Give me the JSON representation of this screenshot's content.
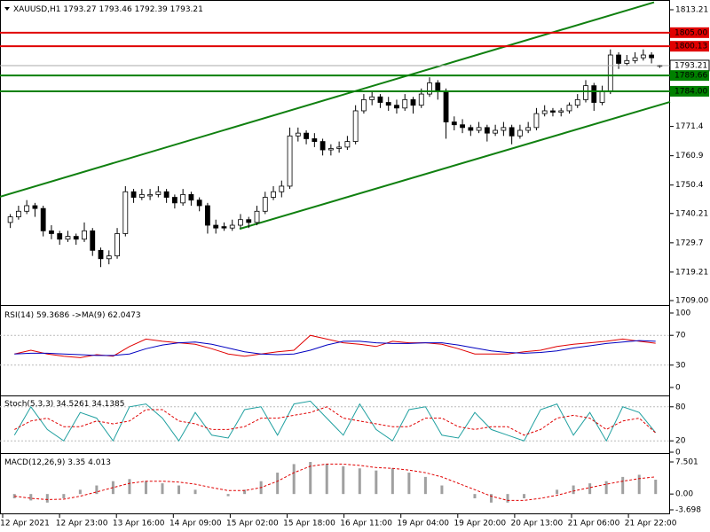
{
  "chart_data": {
    "type": "candlestick",
    "symbol": "XAUUSD,H1",
    "bull_color": "#ffffff",
    "bear_color": "#000000",
    "candles": [
      [
        1737,
        1740,
        1735,
        1739
      ],
      [
        1739,
        1743,
        1738,
        1741
      ],
      [
        1741,
        1745,
        1740,
        1743
      ],
      [
        1743,
        1744,
        1739,
        1742
      ],
      [
        1742,
        1743,
        1732,
        1734
      ],
      [
        1734,
        1736,
        1731,
        1733
      ],
      [
        1733,
        1734,
        1729,
        1731
      ],
      [
        1731,
        1734,
        1730,
        1732
      ],
      [
        1732,
        1733,
        1729,
        1731
      ],
      [
        1731,
        1737,
        1730,
        1734
      ],
      [
        1734,
        1735,
        1725,
        1727
      ],
      [
        1727,
        1728,
        1721,
        1724
      ],
      [
        1724,
        1727,
        1722,
        1725
      ],
      [
        1725,
        1735,
        1724,
        1733
      ],
      [
        1733,
        1750,
        1732,
        1748
      ],
      [
        1748,
        1749,
        1744,
        1746
      ],
      [
        1746,
        1749,
        1745,
        1747
      ],
      [
        1746.5,
        1749,
        1745,
        1747
      ],
      [
        1747,
        1750,
        1746,
        1748
      ],
      [
        1748,
        1749,
        1744,
        1746
      ],
      [
        1746,
        1747,
        1742,
        1744
      ],
      [
        1744,
        1749,
        1743,
        1747
      ],
      [
        1747,
        1748,
        1743,
        1745
      ],
      [
        1745,
        1746,
        1741,
        1743
      ],
      [
        1743,
        1744,
        1733,
        1736
      ],
      [
        1736,
        1738,
        1733,
        1735
      ],
      [
        1735.5,
        1737,
        1734,
        1735
      ],
      [
        1735,
        1738,
        1734,
        1736
      ],
      [
        1736,
        1740,
        1735,
        1738
      ],
      [
        1738,
        1739,
        1735,
        1737
      ],
      [
        1737,
        1743,
        1736,
        1741
      ],
      [
        1741,
        1748,
        1740,
        1746
      ],
      [
        1746,
        1750,
        1745,
        1748
      ],
      [
        1748,
        1752,
        1746,
        1750
      ],
      [
        1750,
        1771,
        1749,
        1768
      ],
      [
        1768,
        1771,
        1766,
        1769
      ],
      [
        1769,
        1770,
        1765,
        1767
      ],
      [
        1767,
        1769,
        1764,
        1766
      ],
      [
        1766,
        1767,
        1761,
        1763
      ],
      [
        1763,
        1765,
        1761,
        1763.5
      ],
      [
        1763.5,
        1766,
        1762,
        1764
      ],
      [
        1764,
        1768,
        1763,
        1766
      ],
      [
        1766,
        1779,
        1765,
        1777
      ],
      [
        1777,
        1783,
        1776,
        1781
      ],
      [
        1781,
        1784,
        1779,
        1782
      ],
      [
        1782,
        1783,
        1778,
        1780
      ],
      [
        1780,
        1782,
        1777,
        1779
      ],
      [
        1779,
        1781,
        1776,
        1778
      ],
      [
        1778,
        1783,
        1777,
        1781
      ],
      [
        1781,
        1782,
        1776,
        1779
      ],
      [
        1779,
        1785,
        1778,
        1783
      ],
      [
        1783,
        1789,
        1782,
        1787
      ],
      [
        1787,
        1788,
        1781,
        1784
      ],
      [
        1784,
        1785,
        1767,
        1773
      ],
      [
        1773,
        1775,
        1770,
        1772
      ],
      [
        1772,
        1774,
        1769,
        1771
      ],
      [
        1771,
        1772,
        1768,
        1770
      ],
      [
        1770,
        1773,
        1769,
        1771
      ],
      [
        1771,
        1772,
        1766,
        1769
      ],
      [
        1769,
        1772,
        1768,
        1770
      ],
      [
        1770,
        1773,
        1768,
        1771
      ],
      [
        1771,
        1772,
        1765,
        1768
      ],
      [
        1768,
        1772,
        1767,
        1770
      ],
      [
        1770,
        1773,
        1769,
        1771
      ],
      [
        1771,
        1778,
        1770,
        1776
      ],
      [
        1776,
        1779,
        1775,
        1777
      ],
      [
        1777,
        1778,
        1775,
        1776.5
      ],
      [
        1776.5,
        1778,
        1775,
        1777
      ],
      [
        1777,
        1780,
        1776,
        1779
      ],
      [
        1779,
        1783,
        1778,
        1781
      ],
      [
        1781,
        1788,
        1780,
        1786
      ],
      [
        1786,
        1787,
        1777,
        1780
      ],
      [
        1780,
        1786,
        1779,
        1784
      ],
      [
        1784,
        1799,
        1783,
        1797
      ],
      [
        1797,
        1798,
        1792,
        1794
      ],
      [
        1794,
        1797,
        1793,
        1795
      ],
      [
        1795,
        1798,
        1794,
        1796
      ],
      [
        1796,
        1799,
        1795,
        1797
      ],
      [
        1797,
        1798,
        1794,
        1796
      ],
      [
        1793.27,
        1793.46,
        1792.39,
        1793.21
      ]
    ],
    "ylim": [
      1709,
      1813.21
    ],
    "yticks": [
      1813.21,
      1771.4,
      1760.9,
      1750.4,
      1740.21,
      1729.7,
      1719.21,
      {
        "value": 1709,
        "label": "1709.00"
      }
    ],
    "levels": [
      {
        "value": 1805,
        "label": "1805.00",
        "color": "#e00000"
      },
      {
        "value": 1800.13,
        "label": "1800.13",
        "color": "#e00000"
      },
      {
        "value": 1789.66,
        "label": "1789.66",
        "color": "#008000"
      },
      {
        "value": 1784,
        "label": "1784.00",
        "color": "#008000"
      }
    ],
    "trendlines": [
      {
        "color": "#108010",
        "values": [
          1746.2,
          1815.9
        ]
      },
      {
        "color": "#108010",
        "values": [
          1734.7,
          1780.2
        ]
      }
    ],
    "x_labels": [
      "12 Apr 2021",
      "12 Apr 23:00",
      "13 Apr 16:00",
      "14 Apr 09:00",
      "15 Apr 02:00",
      "15 Apr 18:00",
      "16 Apr 11:00",
      "19 Apr 04:00",
      "19 Apr 20:00",
      "20 Apr 13:00",
      "21 Apr 06:00",
      "21 Apr 22:00"
    ],
    "indicators": [
      {
        "type": "line",
        "name": "RSI(14)",
        "ma_name": "->MA(9)",
        "ylim": [
          0,
          100
        ],
        "yticks": [
          100,
          70,
          30,
          0
        ],
        "levels": [
          70,
          30
        ],
        "series": [
          {
            "color": "#e00000",
            "values": [
              45,
              50,
              45,
              42,
              40,
              44,
              42,
              55,
              65,
              62,
              60,
              58,
              52,
              45,
              42,
              45,
              48,
              50,
              70,
              65,
              60,
              58,
              55,
              62,
              60,
              60,
              58,
              52,
              45,
              45,
              45,
              48,
              50,
              55,
              58,
              60,
              62,
              65,
              62,
              59.3686
            ]
          },
          {
            "color": "#0000c0",
            "values": [
              45,
              46,
              46,
              45,
              44,
              43,
              43,
              45,
              52,
              57,
              60,
              61,
              58,
              53,
              48,
              45,
              44,
              45,
              50,
              57,
              62,
              62,
              60,
              59,
              59,
              60,
              60,
              57,
              53,
              49,
              47,
              46,
              47,
              49,
              53,
              56,
              59,
              61,
              63,
              62.0473
            ]
          }
        ]
      },
      {
        "type": "line",
        "name": "Stoch(5,3,3)",
        "ylim": [
          0,
          100
        ],
        "yticks": [
          80,
          20,
          0
        ],
        "levels": [
          80,
          20
        ],
        "series": [
          {
            "color": "#20a0a0",
            "values": [
              30,
              80,
              40,
              20,
              70,
              60,
              20,
              80,
              85,
              60,
              20,
              70,
              30,
              25,
              75,
              80,
              30,
              85,
              90,
              60,
              30,
              85,
              40,
              20,
              75,
              80,
              30,
              25,
              70,
              40,
              30,
              20,
              75,
              85,
              30,
              70,
              20,
              80,
              70,
              34.5261
            ]
          },
          {
            "color": "#e00000",
            "dash": true,
            "values": [
              40,
              55,
              60,
              45,
              45,
              55,
              50,
              55,
              75,
              75,
              55,
              50,
              40,
              40,
              45,
              60,
              60,
              65,
              70,
              80,
              60,
              55,
              50,
              45,
              45,
              60,
              60,
              45,
              40,
              45,
              45,
              30,
              40,
              60,
              65,
              60,
              40,
              55,
              60,
              34.1385
            ]
          }
        ]
      },
      {
        "type": "macd",
        "name": "MACD(12,26,9)",
        "ylim": [
          -3.698,
          7.501
        ],
        "yticks": [
          7.501,
          {
            "value": 0,
            "label": "0.00"
          },
          -3.698
        ],
        "histogram": {
          "color": "#a0a0a0",
          "values": [
            -1,
            -1.5,
            -2,
            -1,
            1,
            2,
            3,
            3.5,
            3,
            2.5,
            2,
            1,
            0,
            -0.5,
            1,
            3,
            5,
            7,
            7.5,
            7,
            6.5,
            6,
            5.5,
            6,
            5,
            4,
            2,
            0,
            -1,
            -2,
            -2,
            -1,
            0,
            1,
            2,
            2.5,
            3,
            4,
            4.5,
            3.35
          ]
        },
        "signal": {
          "color": "#e00000",
          "values": [
            -0.5,
            -1,
            -1.3,
            -1.2,
            -0.5,
            0.5,
            1.5,
            2.5,
            3,
            3,
            2.8,
            2.3,
            1.5,
            0.8,
            0.8,
            1.5,
            3,
            5,
            6.5,
            7,
            7,
            6.7,
            6.2,
            6,
            5.6,
            5,
            4,
            2.5,
            1,
            -0.5,
            -1.5,
            -1.5,
            -1,
            -0.3,
            0.7,
            1.5,
            2.3,
            3,
            3.6,
            4.013
          ]
        }
      }
    ]
  }
}
